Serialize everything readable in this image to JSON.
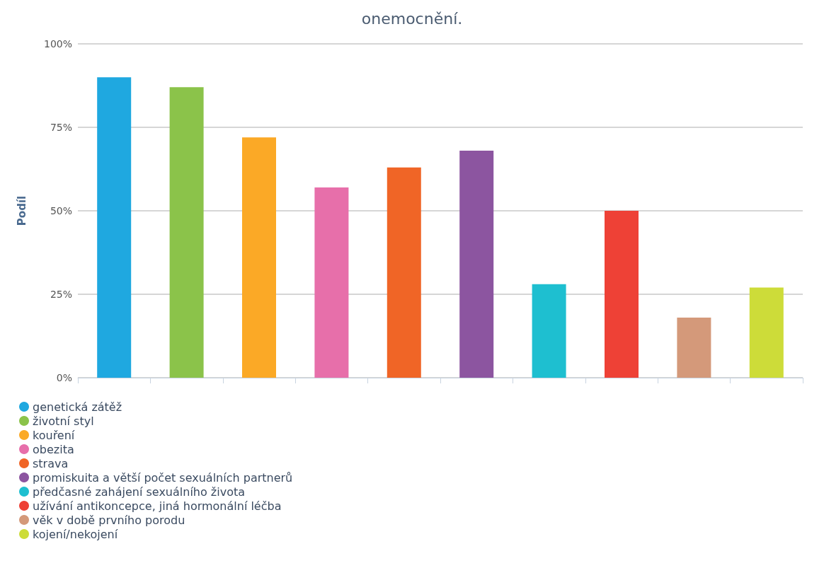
{
  "chart_data": {
    "type": "bar",
    "title": "onemocnění.",
    "ylabel": "Podíl",
    "categories": [
      null,
      null,
      null,
      null,
      null,
      null,
      null,
      null,
      null,
      null
    ],
    "series": [
      {
        "name": "genetická zátěž",
        "color": "#1fa8e0",
        "values": [
          90,
          null,
          null,
          null,
          null,
          null,
          null,
          null,
          null,
          null
        ]
      },
      {
        "name": "životní styl",
        "color": "#8bc34a",
        "values": [
          null,
          87,
          null,
          null,
          null,
          null,
          null,
          null,
          null,
          null
        ]
      },
      {
        "name": "kouření",
        "color": "#fba926",
        "values": [
          null,
          null,
          72,
          null,
          null,
          null,
          null,
          null,
          null,
          null
        ]
      },
      {
        "name": "obezita",
        "color": "#e76faa",
        "values": [
          null,
          null,
          null,
          57,
          null,
          null,
          null,
          null,
          null,
          null
        ]
      },
      {
        "name": "strava",
        "color": "#f06526",
        "values": [
          null,
          null,
          null,
          null,
          63,
          null,
          null,
          null,
          null,
          null
        ]
      },
      {
        "name": "promiskuita a větší počet sexuálních partnerů",
        "color": "#8c55a0",
        "values": [
          null,
          null,
          null,
          null,
          null,
          68,
          null,
          null,
          null,
          null
        ]
      },
      {
        "name": "předčasné zahájení sexuálního života",
        "color": "#1ebfd0",
        "values": [
          null,
          null,
          null,
          null,
          null,
          null,
          28,
          null,
          null,
          null
        ]
      },
      {
        "name": "užívání antikoncepce, jiná hormonální léčba",
        "color": "#ee4136",
        "values": [
          null,
          null,
          null,
          null,
          null,
          null,
          null,
          50,
          null,
          null
        ]
      },
      {
        "name": "věk v době prvního porodu",
        "color": "#d4997a",
        "values": [
          null,
          null,
          null,
          null,
          null,
          null,
          null,
          null,
          18,
          null
        ]
      },
      {
        "name": "kojení/nekojení",
        "color": "#cddc39",
        "values": [
          null,
          null,
          null,
          null,
          null,
          null,
          null,
          null,
          null,
          27
        ]
      }
    ],
    "ylim": [
      0,
      100
    ],
    "yticks": [
      {
        "value": 0,
        "label": "0%"
      },
      {
        "value": 25,
        "label": "25%"
      },
      {
        "value": 50,
        "label": "50%"
      },
      {
        "value": 75,
        "label": "75%"
      },
      {
        "value": 100,
        "label": "100%"
      }
    ],
    "grid": "y",
    "legend": "bottom left"
  }
}
